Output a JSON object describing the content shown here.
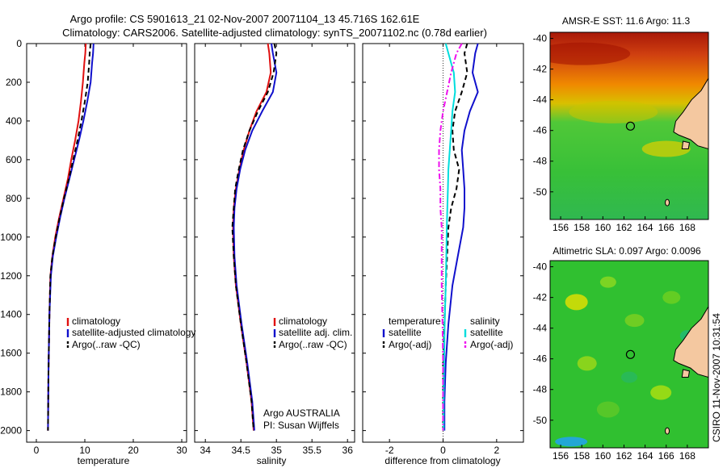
{
  "figure": {
    "title_line1": "Argo profile: CS 5901613_21 02-Nov-2007 20071104_13 45.716S 162.61E",
    "title_line2": "Climatology: CARS2006. Satellite-adjusted climatology: synTS_20071102.nc (0.78d earlier)",
    "credit": "CSIRO 11-Nov-2007 10:31:54"
  },
  "chart_data": [
    {
      "type": "line",
      "id": "temperature",
      "xlabel": "temperature",
      "xlim": [
        -2,
        31
      ],
      "xticks": [
        0,
        10,
        20,
        30
      ],
      "ylim": [
        0,
        2060
      ],
      "yticks": [
        0,
        200,
        400,
        600,
        800,
        1000,
        1200,
        1400,
        1600,
        1800,
        2000
      ],
      "y_reversed": true,
      "series": [
        {
          "name": "climatology",
          "color": "#e01010",
          "dash": "solid",
          "x": [
            10.2,
            10.1,
            9.9,
            9.6,
            9.2,
            8.7,
            8.0,
            7.2,
            6.5,
            5.6,
            4.7,
            3.9,
            3.3,
            2.9,
            2.7,
            2.5,
            2.4
          ],
          "y": [
            0,
            50,
            100,
            200,
            300,
            400,
            500,
            600,
            700,
            800,
            900,
            1000,
            1100,
            1200,
            1400,
            1700,
            2000
          ]
        },
        {
          "name": "satellite-adjusted climatology",
          "color": "#1010cc",
          "dash": "solid",
          "x": [
            11.8,
            11.7,
            11.5,
            11.2,
            10.5,
            9.7,
            8.8,
            7.8,
            6.8,
            5.8,
            4.9,
            4.1,
            3.4,
            3.0,
            2.7,
            2.5,
            2.4
          ],
          "y": [
            0,
            50,
            100,
            200,
            300,
            400,
            500,
            600,
            700,
            800,
            900,
            1000,
            1100,
            1200,
            1400,
            1700,
            2000
          ]
        },
        {
          "name": "Argo(..raw -QC)",
          "color": "#000000",
          "dash": "dashed",
          "x": [
            11.2,
            11.0,
            10.9,
            10.6,
            10.0,
            9.3,
            8.5,
            7.6,
            6.7,
            5.7,
            4.8,
            4.0,
            3.3,
            2.9,
            2.7,
            2.5,
            2.4
          ],
          "y": [
            0,
            50,
            100,
            200,
            300,
            400,
            500,
            600,
            700,
            800,
            900,
            1000,
            1100,
            1200,
            1400,
            1700,
            2000
          ]
        }
      ],
      "legend": {
        "placement": "lower-right",
        "entries": [
          "climatology",
          "satellite-adjusted climatology",
          "Argo(..raw -QC)"
        ]
      }
    },
    {
      "type": "line",
      "id": "salinity",
      "xlabel": "salinity",
      "xlim": [
        33.85,
        36.1
      ],
      "xticks": [
        34,
        34.5,
        35,
        35.5,
        36
      ],
      "ylim": [
        0,
        2060
      ],
      "yticks": [
        0,
        200,
        400,
        600,
        800,
        1000,
        1200,
        1400,
        1600,
        1800,
        2000
      ],
      "y_reversed": true,
      "series": [
        {
          "name": "climatology",
          "color": "#e01010",
          "dash": "solid",
          "x": [
            34.88,
            34.9,
            34.92,
            34.86,
            34.72,
            34.62,
            34.54,
            34.48,
            34.43,
            34.4,
            34.39,
            34.4,
            34.43,
            34.5,
            34.58,
            34.65,
            34.68
          ],
          "y": [
            0,
            50,
            150,
            250,
            350,
            450,
            550,
            650,
            750,
            850,
            950,
            1100,
            1250,
            1450,
            1650,
            1850,
            2000
          ]
        },
        {
          "name": "satellite adj. clim.",
          "color": "#1010cc",
          "dash": "solid",
          "x": [
            34.93,
            34.95,
            35.0,
            34.95,
            34.8,
            34.66,
            34.56,
            34.49,
            34.44,
            34.41,
            34.4,
            34.41,
            34.44,
            34.51,
            34.59,
            34.66,
            34.69
          ],
          "y": [
            0,
            50,
            150,
            250,
            350,
            450,
            550,
            650,
            750,
            850,
            950,
            1100,
            1250,
            1450,
            1650,
            1850,
            2000
          ]
        },
        {
          "name": "Argo(..raw -QC)",
          "color": "#000000",
          "dash": "dashed",
          "x": [
            34.97,
            35.0,
            34.96,
            34.88,
            34.74,
            34.62,
            34.53,
            34.47,
            34.42,
            34.4,
            34.38,
            34.4,
            34.43,
            34.5,
            34.58,
            34.65,
            34.68
          ],
          "y": [
            0,
            50,
            150,
            250,
            350,
            450,
            550,
            650,
            750,
            850,
            950,
            1100,
            1250,
            1450,
            1650,
            1850,
            2000
          ]
        }
      ],
      "legend": {
        "placement": "lower-right",
        "entries": [
          "climatology",
          "satellite adj. clim.",
          "Argo(..raw -QC)"
        ]
      },
      "annotation": [
        "Argo AUSTRALIA",
        "PI: Susan Wijffels"
      ]
    },
    {
      "type": "line",
      "id": "difference",
      "xlabel": "difference from climatology",
      "xlim": [
        -3,
        3
      ],
      "xticks": [
        -2,
        0,
        2
      ],
      "ylim": [
        0,
        2060
      ],
      "yticks": [
        0,
        200,
        400,
        600,
        800,
        1000,
        1200,
        1400,
        1600,
        1800,
        2000
      ],
      "y_reversed": true,
      "series": [
        {
          "name": "temperature satellite",
          "color": "#1010cc",
          "dash": "solid",
          "x": [
            1.3,
            1.2,
            1.1,
            1.3,
            1.0,
            0.8,
            0.7,
            0.75,
            0.8,
            0.8,
            0.75,
            0.55,
            0.35,
            0.2,
            0.1,
            0.05,
            0.05
          ],
          "y": [
            0,
            50,
            150,
            250,
            350,
            450,
            550,
            650,
            750,
            850,
            950,
            1100,
            1250,
            1450,
            1650,
            1850,
            2000
          ]
        },
        {
          "name": "temperature Argo(-adj)",
          "color": "#000000",
          "dash": "dashed",
          "x": [
            0.9,
            0.8,
            0.9,
            0.7,
            0.45,
            0.35,
            0.4,
            0.6,
            0.5,
            0.3,
            0.2,
            0.15,
            0.1,
            0.05,
            0.0,
            0.0,
            0.0
          ],
          "y": [
            0,
            50,
            150,
            250,
            350,
            450,
            550,
            650,
            750,
            850,
            950,
            1100,
            1250,
            1450,
            1650,
            1850,
            2000
          ]
        },
        {
          "name": "salinity satellite",
          "color": "#00dddd",
          "dash": "solid",
          "x": [
            0.1,
            0.2,
            0.4,
            0.45,
            0.35,
            0.3,
            0.25,
            0.2,
            0.18,
            0.16,
            0.14,
            0.12,
            0.1,
            0.06,
            0.04,
            0.02,
            0.02
          ],
          "y": [
            0,
            50,
            150,
            250,
            350,
            450,
            550,
            650,
            750,
            850,
            950,
            1100,
            1250,
            1450,
            1650,
            1850,
            2000
          ]
        },
        {
          "name": "salinity Argo(-adj)",
          "color": "#ee10ee",
          "dash": "dashdot",
          "x": [
            0.7,
            0.5,
            0.3,
            0.15,
            0.0,
            -0.1,
            -0.15,
            -0.15,
            -0.1,
            -0.1,
            -0.05,
            -0.05,
            -0.05,
            -0.02,
            0.0,
            0.0,
            0.0
          ],
          "y": [
            0,
            50,
            150,
            250,
            350,
            450,
            550,
            650,
            750,
            850,
            950,
            1100,
            1250,
            1450,
            1650,
            1850,
            2000
          ]
        }
      ],
      "legend": {
        "placement": "lower-center",
        "headers": [
          "temperature",
          "salinity"
        ],
        "entries": [
          "satellite",
          "Argo(-adj)",
          "satellite",
          "Argo(-adj)"
        ]
      }
    }
  ],
  "maps": [
    {
      "id": "sst-map",
      "title": "AMSR-E SST: 11.6 Argo: 11.3",
      "xticks": [
        "156",
        "158",
        "160",
        "162",
        "164",
        "166",
        "168"
      ],
      "yticks": [
        "-40",
        "-42",
        "-44",
        "-46",
        "-48",
        "-50"
      ],
      "lon_range": [
        155,
        170
      ],
      "lat_range": [
        -51.8,
        -39.6
      ],
      "marker": {
        "lon": 162.61,
        "lat": -45.716
      },
      "colors": {
        "warm": "#b82010",
        "mid": "#f0a000",
        "cool": "#38c030",
        "land": "#f4c8a0"
      }
    },
    {
      "id": "sla-map",
      "title": "Altimetric SLA: 0.097 Argo: 0.0096",
      "xticks": [
        "156",
        "158",
        "160",
        "162",
        "164",
        "166",
        "168"
      ],
      "yticks": [
        "-40",
        "-42",
        "-44",
        "-46",
        "-48",
        "-50"
      ],
      "lon_range": [
        155,
        170
      ],
      "lat_range": [
        -51.8,
        -39.6
      ],
      "marker": {
        "lon": 162.61,
        "lat": -45.716
      },
      "colors": {
        "base": "#30c030",
        "high": "#e8e000",
        "low": "#20a0ff",
        "land": "#f4c8a0"
      }
    }
  ]
}
